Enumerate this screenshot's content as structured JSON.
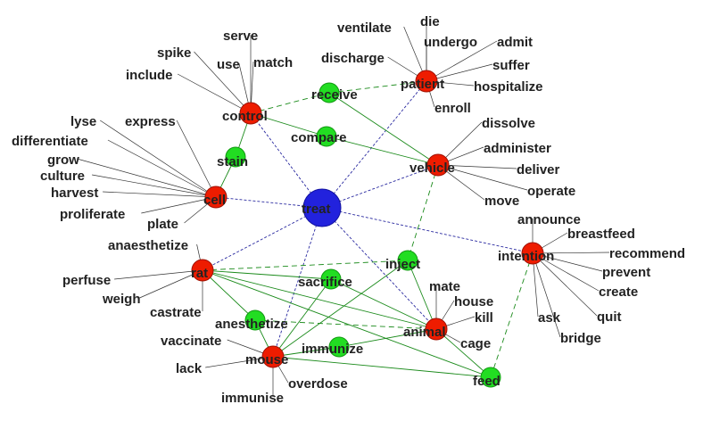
{
  "colors": {
    "hub": "#2222dd",
    "red_node": "#ee1c00",
    "green_node": "#22dd22",
    "blue_edge": "#2a2aa0",
    "green_edge": "#1a8a1a",
    "spoke": "#333333",
    "label": "#222222"
  },
  "diagram": {
    "hub": {
      "id": "treat",
      "label": "treat"
    },
    "red_nodes": [
      {
        "id": "control",
        "label": "control"
      },
      {
        "id": "patient",
        "label": "patient"
      },
      {
        "id": "vehicle",
        "label": "vehicle"
      },
      {
        "id": "cell",
        "label": "cell"
      },
      {
        "id": "intention",
        "label": "intention"
      },
      {
        "id": "rat",
        "label": "rat"
      },
      {
        "id": "animal",
        "label": "animal"
      },
      {
        "id": "mouse",
        "label": "mouse"
      }
    ],
    "green_nodes": [
      {
        "id": "receive",
        "label": "receive"
      },
      {
        "id": "compare",
        "label": "compare"
      },
      {
        "id": "stain",
        "label": "stain"
      },
      {
        "id": "inject",
        "label": "inject"
      },
      {
        "id": "sacrifice",
        "label": "sacrifice"
      },
      {
        "id": "anesthetize",
        "label": "anesthetize"
      },
      {
        "id": "immunize",
        "label": "immunize"
      },
      {
        "id": "feed",
        "label": "feed"
      }
    ],
    "spokes": {
      "control": [
        "spike",
        "serve",
        "use",
        "match",
        "include"
      ],
      "patient": [
        "ventilate",
        "die",
        "undergo",
        "admit",
        "discharge",
        "suffer",
        "hospitalize",
        "enroll"
      ],
      "vehicle": [
        "dissolve",
        "administer",
        "deliver",
        "operate",
        "move"
      ],
      "cell": [
        "lyse",
        "express",
        "differentiate",
        "grow",
        "culture",
        "harvest",
        "proliferate",
        "plate"
      ],
      "intention": [
        "announce",
        "breastfeed",
        "recommend",
        "prevent",
        "create",
        "quit",
        "ask",
        "bridge"
      ],
      "rat": [
        "anaesthetize",
        "perfuse",
        "weigh",
        "castrate"
      ],
      "animal": [
        "mate",
        "house",
        "kill",
        "cage"
      ],
      "mouse": [
        "vaccinate",
        "lack",
        "immunise",
        "overdose"
      ]
    },
    "edges": [
      {
        "from": "treat",
        "to": "control",
        "kind": "blue"
      },
      {
        "from": "treat",
        "to": "patient",
        "kind": "blue"
      },
      {
        "from": "treat",
        "to": "vehicle",
        "kind": "blue"
      },
      {
        "from": "treat",
        "to": "cell",
        "kind": "blue"
      },
      {
        "from": "treat",
        "to": "intention",
        "kind": "blue"
      },
      {
        "from": "treat",
        "to": "rat",
        "kind": "blue"
      },
      {
        "from": "treat",
        "to": "animal",
        "kind": "blue"
      },
      {
        "from": "treat",
        "to": "mouse",
        "kind": "blue"
      },
      {
        "from": "control",
        "to": "receive",
        "kind": "green-dashed"
      },
      {
        "from": "receive",
        "to": "patient",
        "kind": "green-dashed"
      },
      {
        "from": "control",
        "to": "compare",
        "kind": "green"
      },
      {
        "from": "compare",
        "to": "vehicle",
        "kind": "green"
      },
      {
        "from": "receive",
        "to": "vehicle",
        "kind": "green"
      },
      {
        "from": "control",
        "to": "stain",
        "kind": "green"
      },
      {
        "from": "stain",
        "to": "cell",
        "kind": "green"
      },
      {
        "from": "vehicle",
        "to": "inject",
        "kind": "green-dashed"
      },
      {
        "from": "rat",
        "to": "inject",
        "kind": "green-dashed"
      },
      {
        "from": "inject",
        "to": "mouse",
        "kind": "green"
      },
      {
        "from": "inject",
        "to": "animal",
        "kind": "green"
      },
      {
        "from": "rat",
        "to": "sacrifice",
        "kind": "green"
      },
      {
        "from": "sacrifice",
        "to": "mouse",
        "kind": "green"
      },
      {
        "from": "sacrifice",
        "to": "animal",
        "kind": "green"
      },
      {
        "from": "rat",
        "to": "anesthetize",
        "kind": "green"
      },
      {
        "from": "anesthetize",
        "to": "mouse",
        "kind": "green"
      },
      {
        "from": "anesthetize",
        "to": "animal",
        "kind": "green-dashed"
      },
      {
        "from": "mouse",
        "to": "immunize",
        "kind": "green"
      },
      {
        "from": "immunize",
        "to": "animal",
        "kind": "green"
      },
      {
        "from": "rat",
        "to": "animal",
        "kind": "green"
      },
      {
        "from": "rat",
        "to": "feed",
        "kind": "green"
      },
      {
        "from": "mouse",
        "to": "feed",
        "kind": "green"
      },
      {
        "from": "animal",
        "to": "feed",
        "kind": "green"
      },
      {
        "from": "intention",
        "to": "feed",
        "kind": "green-dashed"
      }
    ]
  }
}
